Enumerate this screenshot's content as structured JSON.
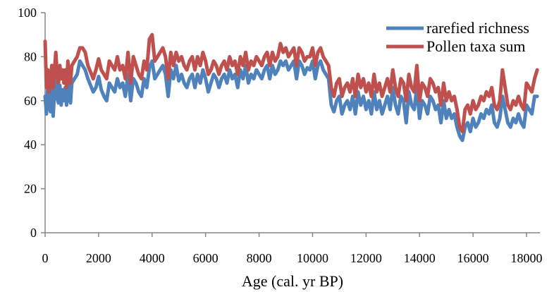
{
  "chart_data": {
    "type": "line",
    "title": "",
    "xlabel": "Age (cal. yr BP)",
    "ylabel": "",
    "xlim": [
      0,
      18500
    ],
    "ylim": [
      0,
      100
    ],
    "x_ticks": [
      "0",
      "2000",
      "4000",
      "6000",
      "8000",
      "10000",
      "12000",
      "14000",
      "16000",
      "18000"
    ],
    "y_ticks": [
      "0",
      "20",
      "40",
      "60",
      "80",
      "100"
    ],
    "grid": false,
    "legend_position": "top-right",
    "series": [
      {
        "name": "rarefied richness",
        "color": "#4f81bd",
        "x": [
          0,
          50,
          100,
          150,
          200,
          250,
          300,
          350,
          400,
          450,
          500,
          550,
          600,
          650,
          700,
          750,
          800,
          850,
          900,
          950,
          1000,
          1100,
          1200,
          1300,
          1400,
          1500,
          1600,
          1700,
          1800,
          1900,
          2000,
          2100,
          2200,
          2300,
          2400,
          2500,
          2600,
          2700,
          2800,
          2900,
          3000,
          3100,
          3200,
          3300,
          3400,
          3500,
          3600,
          3700,
          3800,
          3900,
          4000,
          4100,
          4200,
          4300,
          4400,
          4500,
          4600,
          4700,
          4800,
          4900,
          5000,
          5100,
          5200,
          5300,
          5400,
          5500,
          5600,
          5700,
          5800,
          5900,
          6000,
          6100,
          6200,
          6300,
          6400,
          6500,
          6600,
          6700,
          6800,
          6900,
          7000,
          7100,
          7200,
          7300,
          7400,
          7500,
          7600,
          7700,
          7800,
          7900,
          8000,
          8100,
          8200,
          8300,
          8400,
          8500,
          8600,
          8700,
          8800,
          8900,
          9000,
          9100,
          9200,
          9300,
          9400,
          9500,
          9600,
          9700,
          9800,
          9900,
          10000,
          10100,
          10200,
          10300,
          10400,
          10500,
          10600,
          10700,
          10800,
          10900,
          11000,
          11100,
          11200,
          11300,
          11400,
          11500,
          11600,
          11700,
          11800,
          11900,
          12000,
          12100,
          12200,
          12300,
          12400,
          12500,
          12600,
          12700,
          12800,
          12900,
          13000,
          13100,
          13200,
          13300,
          13400,
          13500,
          13600,
          13700,
          13800,
          13900,
          14000,
          14100,
          14200,
          14300,
          14400,
          14500,
          14600,
          14700,
          14800,
          14900,
          15000,
          15100,
          15200,
          15300,
          15400,
          15500,
          15600,
          15700,
          15800,
          15900,
          16000,
          16100,
          16200,
          16300,
          16400,
          16500,
          16600,
          16700,
          16800,
          16900,
          17000,
          17100,
          17200,
          17300,
          17400,
          17500,
          17600,
          17700,
          17800,
          17900,
          18000,
          18100,
          18200,
          18300,
          18400
        ],
        "y": [
          62,
          54,
          66,
          58,
          55,
          68,
          53,
          64,
          70,
          61,
          59,
          67,
          58,
          65,
          60,
          66,
          58,
          70,
          62,
          59,
          68,
          70,
          72,
          78,
          76,
          74,
          70,
          67,
          64,
          66,
          71,
          65,
          62,
          60,
          68,
          66,
          64,
          70,
          66,
          68,
          62,
          72,
          60,
          70,
          68,
          64,
          62,
          70,
          66,
          75,
          78,
          70,
          72,
          74,
          76,
          72,
          62,
          74,
          70,
          76,
          69,
          72,
          68,
          66,
          70,
          72,
          66,
          72,
          68,
          74,
          70,
          64,
          68,
          72,
          70,
          66,
          70,
          72,
          68,
          74,
          70,
          72,
          66,
          74,
          70,
          76,
          68,
          72,
          70,
          74,
          72,
          70,
          74,
          76,
          70,
          76,
          72,
          74,
          78,
          76,
          78,
          74,
          76,
          78,
          70,
          78,
          76,
          72,
          75,
          74,
          78,
          70,
          76,
          78,
          74,
          72,
          70,
          58,
          55,
          60,
          62,
          54,
          58,
          60,
          56,
          62,
          54,
          64,
          58,
          62,
          56,
          60,
          54,
          64,
          56,
          60,
          54,
          58,
          62,
          56,
          66,
          58,
          54,
          62,
          60,
          50,
          64,
          58,
          56,
          66,
          52,
          60,
          58,
          54,
          62,
          60,
          56,
          58,
          50,
          60,
          52,
          56,
          52,
          54,
          48,
          44,
          42,
          48,
          50,
          46,
          52,
          48,
          50,
          54,
          52,
          56,
          54,
          58,
          50,
          48,
          52,
          62,
          56,
          50,
          48,
          52,
          50,
          54,
          50,
          48,
          58,
          56,
          54,
          62,
          62
        ]
      },
      {
        "name": "Pollen taxa sum",
        "color": "#c0504d",
        "x": [
          0,
          50,
          100,
          150,
          200,
          250,
          300,
          350,
          400,
          450,
          500,
          550,
          600,
          650,
          700,
          750,
          800,
          850,
          900,
          950,
          1000,
          1100,
          1200,
          1300,
          1400,
          1500,
          1600,
          1700,
          1800,
          1900,
          2000,
          2100,
          2200,
          2300,
          2400,
          2500,
          2600,
          2700,
          2800,
          2900,
          3000,
          3100,
          3200,
          3300,
          3400,
          3500,
          3600,
          3700,
          3800,
          3900,
          4000,
          4100,
          4200,
          4300,
          4400,
          4500,
          4600,
          4700,
          4800,
          4900,
          5000,
          5100,
          5200,
          5300,
          5400,
          5500,
          5600,
          5700,
          5800,
          5900,
          6000,
          6100,
          6200,
          6300,
          6400,
          6500,
          6600,
          6700,
          6800,
          6900,
          7000,
          7100,
          7200,
          7300,
          7400,
          7500,
          7600,
          7700,
          7800,
          7900,
          8000,
          8100,
          8200,
          8300,
          8400,
          8500,
          8600,
          8700,
          8800,
          8900,
          9000,
          9100,
          9200,
          9300,
          9400,
          9500,
          9600,
          9700,
          9800,
          9900,
          10000,
          10100,
          10200,
          10300,
          10400,
          10500,
          10600,
          10700,
          10800,
          10900,
          11000,
          11100,
          11200,
          11300,
          11400,
          11500,
          11600,
          11700,
          11800,
          11900,
          12000,
          12100,
          12200,
          12300,
          12400,
          12500,
          12600,
          12700,
          12800,
          12900,
          13000,
          13100,
          13200,
          13300,
          13400,
          13500,
          13600,
          13700,
          13800,
          13900,
          14000,
          14100,
          14200,
          14300,
          14400,
          14500,
          14600,
          14700,
          14800,
          14900,
          15000,
          15100,
          15200,
          15300,
          15400,
          15500,
          15600,
          15700,
          15800,
          15900,
          16000,
          16100,
          16200,
          16300,
          16400,
          16500,
          16600,
          16700,
          16800,
          16900,
          17000,
          17100,
          17200,
          17300,
          17400,
          17500,
          17600,
          17700,
          17800,
          17900,
          18000,
          18100,
          18200,
          18300,
          18400
        ],
        "y": [
          87,
          66,
          74,
          64,
          70,
          76,
          66,
          74,
          82,
          72,
          68,
          76,
          70,
          74,
          68,
          74,
          66,
          78,
          70,
          68,
          76,
          78,
          80,
          84,
          84,
          82,
          76,
          73,
          70,
          74,
          79,
          74,
          72,
          70,
          78,
          76,
          74,
          80,
          74,
          76,
          70,
          82,
          68,
          80,
          76,
          72,
          70,
          78,
          74,
          88,
          90,
          78,
          80,
          82,
          84,
          80,
          70,
          82,
          76,
          82,
          78,
          80,
          76,
          74,
          78,
          80,
          74,
          80,
          76,
          82,
          78,
          72,
          74,
          78,
          76,
          72,
          76,
          78,
          74,
          80,
          76,
          78,
          72,
          80,
          76,
          82,
          74,
          78,
          76,
          80,
          78,
          76,
          80,
          82,
          76,
          82,
          78,
          80,
          86,
          82,
          84,
          80,
          82,
          84,
          76,
          84,
          82,
          78,
          80,
          80,
          84,
          76,
          82,
          84,
          80,
          78,
          76,
          66,
          62,
          68,
          70,
          62,
          66,
          68,
          64,
          70,
          62,
          72,
          66,
          70,
          64,
          68,
          62,
          72,
          64,
          68,
          62,
          66,
          70,
          64,
          74,
          66,
          62,
          70,
          68,
          60,
          72,
          66,
          64,
          76,
          60,
          68,
          66,
          62,
          70,
          68,
          64,
          66,
          58,
          68,
          60,
          64,
          60,
          62,
          56,
          48,
          46,
          56,
          58,
          54,
          60,
          56,
          58,
          62,
          60,
          64,
          62,
          66,
          58,
          56,
          60,
          74,
          66,
          58,
          56,
          60,
          58,
          62,
          58,
          56,
          68,
          66,
          64,
          70,
          74
        ]
      }
    ]
  }
}
